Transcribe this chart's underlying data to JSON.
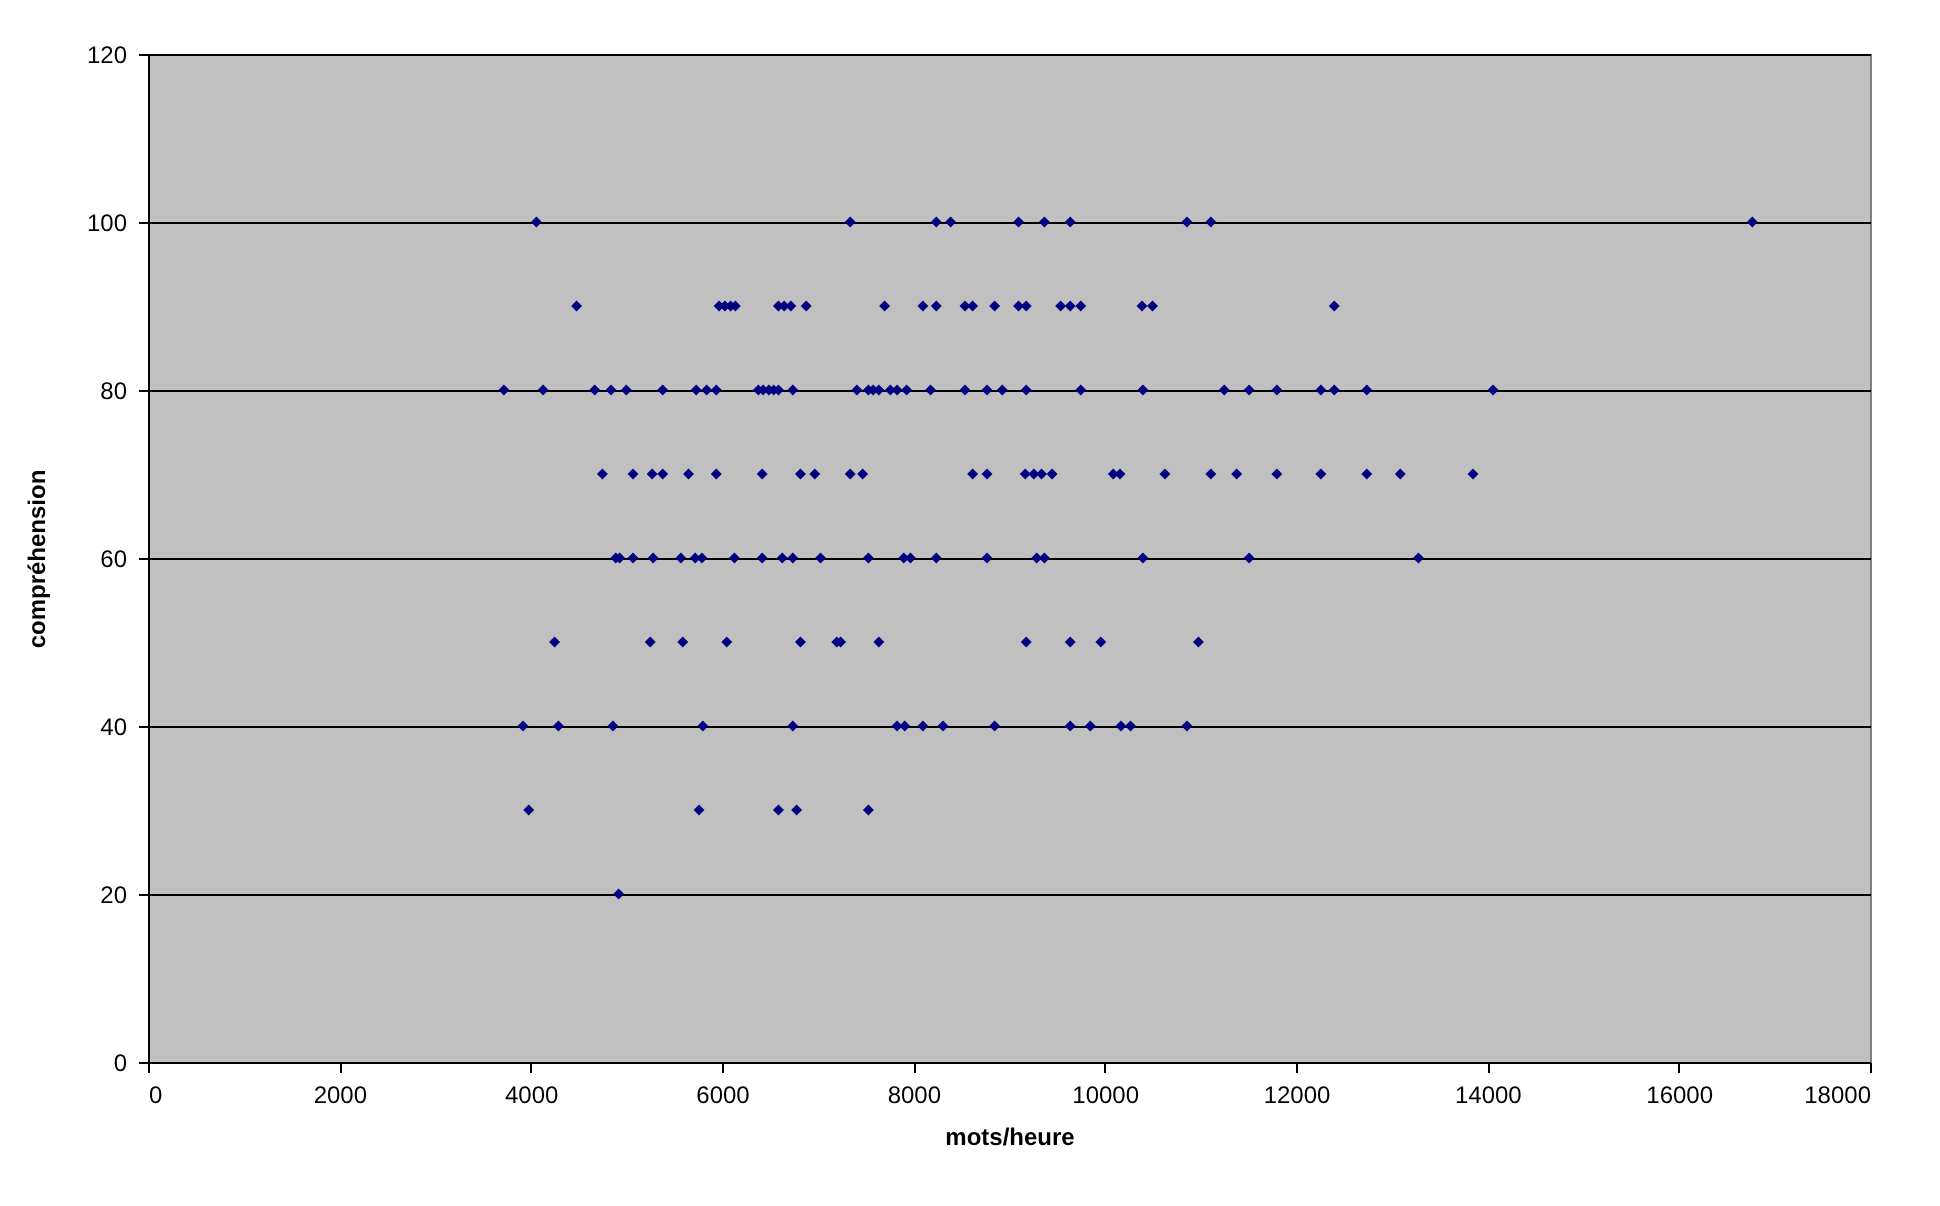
{
  "chart_data": {
    "type": "scatter",
    "xlabel": "mots/heure",
    "ylabel": "compréhension",
    "xlim": [
      0,
      18000
    ],
    "xticks": [
      0,
      2000,
      4000,
      6000,
      8000,
      10000,
      12000,
      14000,
      16000,
      18000
    ],
    "ylim": [
      0,
      120
    ],
    "yticks": [
      0,
      20,
      40,
      60,
      80,
      100,
      120
    ],
    "grid": "y",
    "marker": "diamond",
    "x": [
      4060,
      7340,
      8240,
      8390,
      9100,
      9370,
      9640,
      10860,
      11110,
      16770,
      4480,
      5970,
      6030,
      6090,
      6140,
      6590,
      6650,
      6720,
      6880,
      7700,
      8100,
      8240,
      8540,
      8620,
      8850,
      9100,
      9180,
      9540,
      9640,
      9750,
      10390,
      10500,
      12400,
      3720,
      4130,
      4670,
      4840,
      5000,
      5380,
      5730,
      5840,
      5940,
      6380,
      6430,
      6490,
      6540,
      6590,
      6740,
      7410,
      7530,
      7580,
      7640,
      7760,
      7830,
      7930,
      8180,
      8540,
      8770,
      8930,
      9180,
      9750,
      10400,
      11250,
      11510,
      11800,
      12260,
      12400,
      12740,
      14060,
      4750,
      5070,
      5270,
      5380,
      5650,
      5940,
      6420,
      6820,
      6970,
      7340,
      7470,
      8620,
      8770,
      9170,
      9260,
      9340,
      9450,
      10090,
      10160,
      10630,
      11110,
      11380,
      11800,
      12260,
      12740,
      13090,
      13850,
      4890,
      4930,
      5070,
      5280,
      5570,
      5720,
      5790,
      6130,
      6420,
      6630,
      6740,
      7030,
      7530,
      7900,
      7970,
      8240,
      8770,
      9290,
      9370,
      10400,
      11510,
      13280,
      4250,
      5250,
      5590,
      6050,
      6820,
      7200,
      7240,
      7640,
      9180,
      9640,
      9960,
      10980,
      3920,
      4290,
      4860,
      5800,
      6740,
      7830,
      7910,
      8100,
      8310,
      8850,
      9640,
      9850,
      10170,
      10270,
      10860,
      3980,
      5760,
      6590,
      6780,
      7530,
      4920
    ],
    "series": [
      {
        "color": "#000080",
        "values": [
          100,
          100,
          100,
          100,
          100,
          100,
          100,
          100,
          100,
          100,
          90,
          90,
          90,
          90,
          90,
          90,
          90,
          90,
          90,
          90,
          90,
          90,
          90,
          90,
          90,
          90,
          90,
          90,
          90,
          90,
          90,
          90,
          90,
          80,
          80,
          80,
          80,
          80,
          80,
          80,
          80,
          80,
          80,
          80,
          80,
          80,
          80,
          80,
          80,
          80,
          80,
          80,
          80,
          80,
          80,
          80,
          80,
          80,
          80,
          80,
          80,
          80,
          80,
          80,
          80,
          80,
          80,
          80,
          80,
          70,
          70,
          70,
          70,
          70,
          70,
          70,
          70,
          70,
          70,
          70,
          70,
          70,
          70,
          70,
          70,
          70,
          70,
          70,
          70,
          70,
          70,
          70,
          70,
          70,
          70,
          70,
          60,
          60,
          60,
          60,
          60,
          60,
          60,
          60,
          60,
          60,
          60,
          60,
          60,
          60,
          60,
          60,
          60,
          60,
          60,
          60,
          60,
          60,
          50,
          50,
          50,
          50,
          50,
          50,
          50,
          50,
          50,
          50,
          50,
          50,
          40,
          40,
          40,
          40,
          40,
          40,
          40,
          40,
          40,
          40,
          40,
          40,
          40,
          40,
          40,
          30,
          30,
          30,
          30,
          30,
          20
        ]
      }
    ]
  }
}
